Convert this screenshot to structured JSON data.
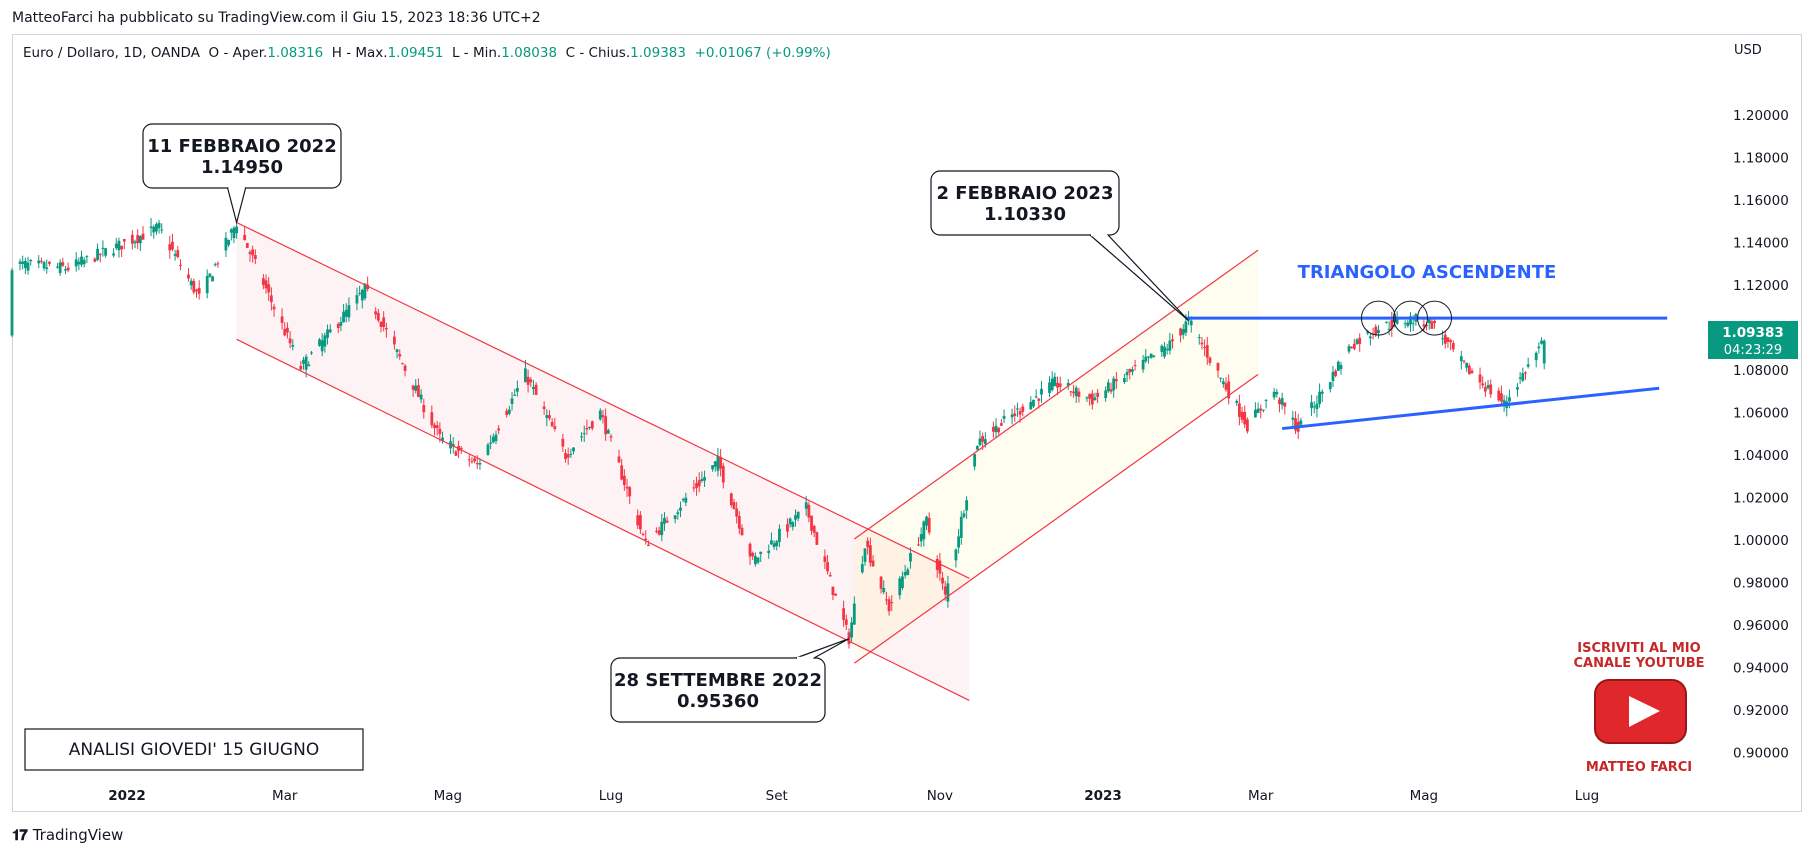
{
  "header": {
    "published": "MatteoFarci ha pubblicato su TradingView.com il Giu 15, 2023 18:36 UTC+2"
  },
  "legend": {
    "symbol": "Euro / Dollaro, 1D, OANDA",
    "o_label": "O - Aper.",
    "o_val": "1.08316",
    "h_label": "H - Max.",
    "h_val": "1.09451",
    "l_label": "L - Min.",
    "l_val": "1.08038",
    "c_label": "C - Chius.",
    "c_val": "1.09383",
    "change": "+0.01067 (+0.99%)"
  },
  "currency": "USD",
  "footer": {
    "brand": "TradingView"
  },
  "colors": {
    "up": "#089981",
    "down": "#f23645",
    "channel": "#f23645",
    "triangle": "#2962ff"
  },
  "chart_data": {
    "type": "candlestick",
    "symbol": "EURUSD",
    "timeframe": "1D",
    "price_axis": {
      "ticks": [
        "1.20000",
        "1.18000",
        "1.16000",
        "1.14000",
        "1.12000",
        "1.10000",
        "1.08000",
        "1.06000",
        "1.04000",
        "1.02000",
        "1.00000",
        "0.98000",
        "0.96000",
        "0.94000",
        "0.92000",
        "0.90000"
      ],
      "range": [
        0.888,
        1.226
      ]
    },
    "time_axis": {
      "labels": [
        {
          "text": "2022",
          "bold": true,
          "date": "2022-01-01"
        },
        {
          "text": "Mar",
          "date": "2022-03-01"
        },
        {
          "text": "Mag",
          "date": "2022-05-01"
        },
        {
          "text": "Lug",
          "date": "2022-07-01"
        },
        {
          "text": "Set",
          "date": "2022-09-01"
        },
        {
          "text": "Nov",
          "date": "2022-11-01"
        },
        {
          "text": "2023",
          "bold": true,
          "date": "2023-01-01"
        },
        {
          "text": "Mar",
          "date": "2023-03-01"
        },
        {
          "text": "Mag",
          "date": "2023-05-01"
        },
        {
          "text": "Lug",
          "date": "2023-07-01"
        }
      ],
      "range": [
        "2021-11-19",
        "2023-08-16"
      ]
    },
    "last_price": {
      "value": "1.09383",
      "countdown": "04:23:29"
    },
    "path": [
      [
        "2021-11-19",
        1.13
      ],
      [
        "2021-12-10",
        1.128
      ],
      [
        "2022-01-13",
        1.147
      ],
      [
        "2022-01-28",
        1.114
      ],
      [
        "2022-02-11",
        1.1495
      ],
      [
        "2022-03-07",
        1.081
      ],
      [
        "2022-03-31",
        1.118
      ],
      [
        "2022-04-28",
        1.048
      ],
      [
        "2022-05-12",
        1.035
      ],
      [
        "2022-05-30",
        1.078
      ],
      [
        "2022-06-14",
        1.04
      ],
      [
        "2022-06-27",
        1.06
      ],
      [
        "2022-07-14",
        0.998
      ],
      [
        "2022-08-10",
        1.037
      ],
      [
        "2022-08-23",
        0.99
      ],
      [
        "2022-09-12",
        1.015
      ],
      [
        "2022-09-28",
        0.9536
      ],
      [
        "2022-10-04",
        0.999
      ],
      [
        "2022-10-13",
        0.968
      ],
      [
        "2022-10-27",
        1.009
      ],
      [
        "2022-11-03",
        0.973
      ],
      [
        "2022-11-15",
        1.046
      ],
      [
        "2022-12-14",
        1.074
      ],
      [
        "2022-12-28",
        1.066
      ],
      [
        "2023-01-26",
        1.092
      ],
      [
        "2023-02-02",
        1.1033
      ],
      [
        "2023-02-24",
        1.054
      ],
      [
        "2023-03-06",
        1.07
      ],
      [
        "2023-03-15",
        1.052
      ],
      [
        "2023-04-04",
        1.092
      ],
      [
        "2023-04-14",
        1.1
      ],
      [
        "2023-04-26",
        1.104
      ],
      [
        "2023-05-04",
        1.102
      ],
      [
        "2023-05-16",
        1.082
      ],
      [
        "2023-05-31",
        1.064
      ],
      [
        "2023-06-15",
        1.0938
      ]
    ],
    "annotations": {
      "callouts": [
        {
          "line1": "11 FEBBRAIO 2022",
          "line2": "1.14950",
          "date": "2022-02-11",
          "price": 1.1495
        },
        {
          "line1": "2 FEBBRAIO 2023",
          "line2": "1.10330",
          "date": "2023-02-02",
          "price": 1.1033
        },
        {
          "line1": "28 SETTEMBRE 2022",
          "line2": "0.95360",
          "date": "2022-09-28",
          "price": 0.9536
        }
      ],
      "analysis_label": "ANALISI GIOVEDI' 15 GIUGNO",
      "triangle_label": "TRIANGOLO ASCENDENTE",
      "resistance": {
        "price": 1.1045,
        "from": "2023-02-01",
        "to": "2023-07-31"
      },
      "support": {
        "from": [
          "2023-03-09",
          1.0525
        ],
        "to": [
          "2023-07-28",
          1.0715
        ]
      },
      "down_channel": {
        "upper": [
          [
            "2022-02-11",
            1.1495
          ],
          [
            "2022-11-12",
            0.982
          ]
        ],
        "lower": [
          [
            "2022-02-11",
            1.0945
          ],
          [
            "2022-11-12",
            0.9245
          ]
        ]
      },
      "up_channel": {
        "upper": [
          [
            "2022-09-30",
            1.0005
          ],
          [
            "2023-02-28",
            1.1365
          ]
        ],
        "lower": [
          [
            "2022-09-30",
            0.942
          ],
          [
            "2023-02-28",
            1.078
          ]
        ]
      },
      "circles": [
        [
          "2023-04-14",
          1.1045
        ],
        [
          "2023-04-26",
          1.1045
        ],
        [
          "2023-05-05",
          1.1045
        ]
      ]
    }
  },
  "promo": {
    "line1": "ISCRIVITI AL MIO",
    "line2": "CANALE YOUTUBE",
    "name": "MATTEO FARCI"
  }
}
